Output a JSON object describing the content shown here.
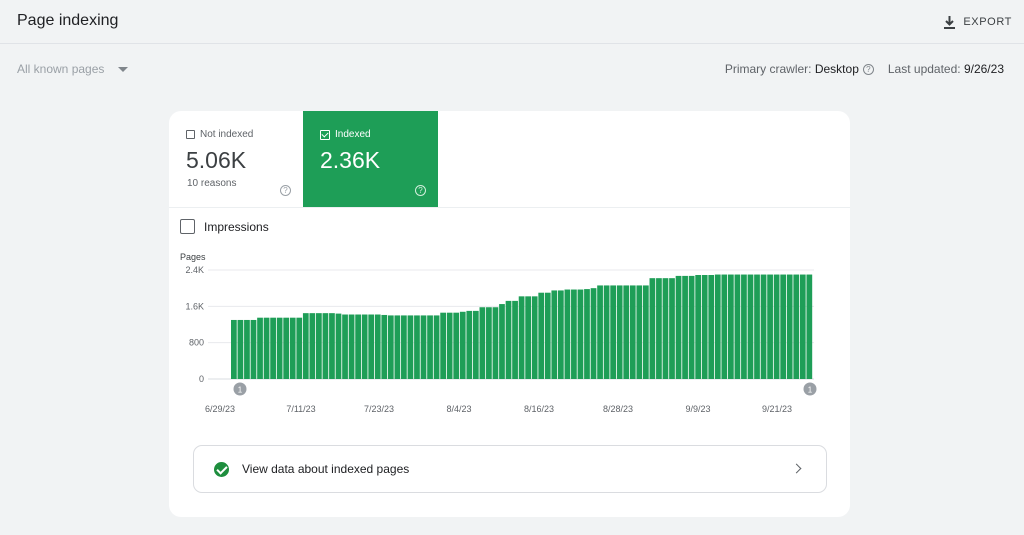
{
  "header": {
    "title": "Page indexing",
    "export_label": "EXPORT"
  },
  "filter": {
    "selected": "All known pages"
  },
  "meta": {
    "crawler_label": "Primary crawler:",
    "crawler_value": "Desktop",
    "updated_label": "Last updated:",
    "updated_value": "9/26/23"
  },
  "tiles": {
    "not_indexed": {
      "label": "Not indexed",
      "value": "5.06K",
      "sub": "10 reasons"
    },
    "indexed": {
      "label": "Indexed",
      "value": "2.36K"
    }
  },
  "impressions_label": "Impressions",
  "view_data_label": "View data about indexed pages",
  "colors": {
    "accent": "#1e9e57",
    "bar": "#1e9e57"
  },
  "chart_data": {
    "type": "bar",
    "title": "",
    "ylabel": "Pages",
    "ylim": [
      0,
      2400
    ],
    "yticks": [
      "0",
      "800",
      "1.6K",
      "2.4K"
    ],
    "ytick_values": [
      0,
      800,
      1600,
      2400
    ],
    "xtick_labels": [
      "6/29/23",
      "7/11/23",
      "7/23/23",
      "8/4/23",
      "8/16/23",
      "8/28/23",
      "9/9/23",
      "9/21/23"
    ],
    "annotations": [
      "1",
      "1"
    ],
    "series": [
      {
        "name": "Indexed",
        "values": [
          1300,
          1300,
          1300,
          1300,
          1350,
          1350,
          1350,
          1350,
          1350,
          1350,
          1350,
          1450,
          1450,
          1450,
          1450,
          1450,
          1440,
          1420,
          1420,
          1420,
          1420,
          1420,
          1420,
          1410,
          1400,
          1400,
          1400,
          1400,
          1400,
          1400,
          1400,
          1400,
          1460,
          1460,
          1460,
          1480,
          1500,
          1500,
          1580,
          1580,
          1580,
          1650,
          1720,
          1720,
          1820,
          1820,
          1820,
          1900,
          1900,
          1950,
          1950,
          1970,
          1970,
          1970,
          1980,
          2000,
          2060,
          2060,
          2060,
          2060,
          2060,
          2060,
          2060,
          2060,
          2220,
          2220,
          2220,
          2220,
          2270,
          2270,
          2270,
          2290,
          2290,
          2290,
          2300,
          2300,
          2300,
          2300,
          2300,
          2300,
          2300,
          2300,
          2300,
          2300,
          2300,
          2300,
          2300,
          2300,
          2300
        ]
      }
    ]
  }
}
